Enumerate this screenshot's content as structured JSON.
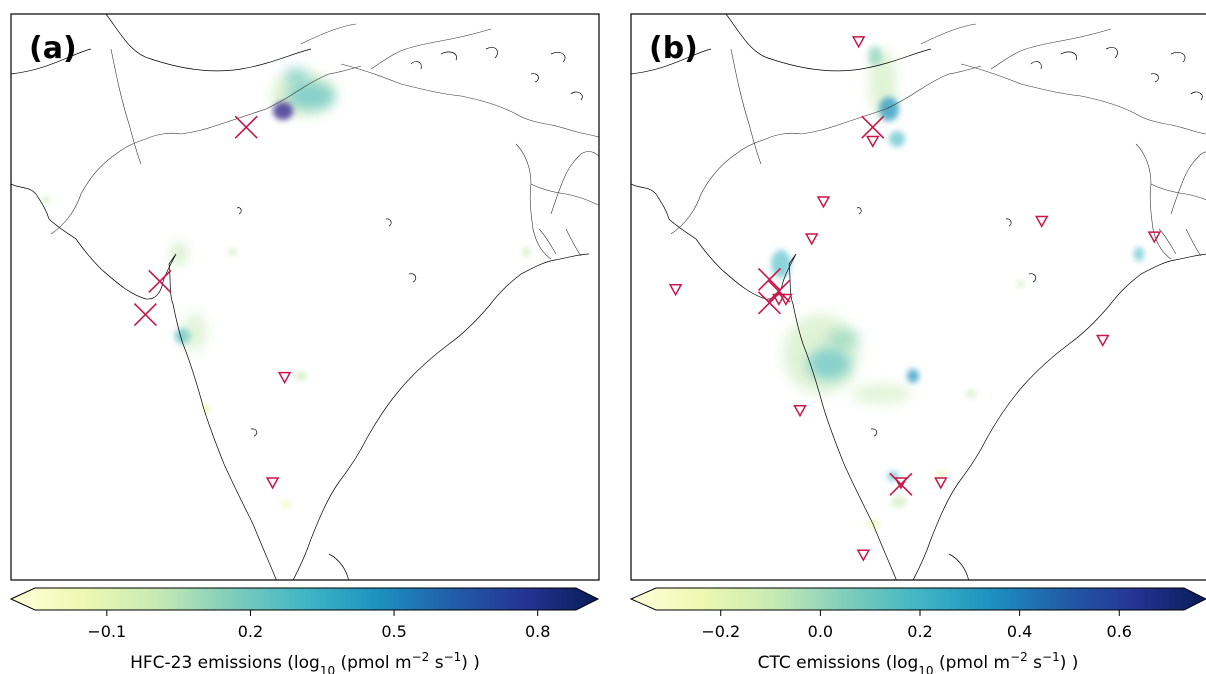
{
  "panels": [
    {
      "label": "(a)",
      "cbar_ticks": [
        "−0.1",
        "0.2",
        "0.5",
        "0.8"
      ],
      "cbar_label_pre": "HFC-23 emissions (log",
      "cbar_label_sub": "10",
      "cbar_label_mid": " (pmol m",
      "cbar_label_sup1": "−2",
      "cbar_label_mid2": " s",
      "cbar_label_sup2": "−1",
      "cbar_label_post": ") )",
      "tick_values": [
        -0.1,
        0.2,
        0.5,
        0.8
      ],
      "range": [
        -0.25,
        0.88
      ],
      "marker_color": "#c8174a",
      "crosses": [
        {
          "lon": 76.8,
          "lat": 30.2
        },
        {
          "lon": 73.2,
          "lat": 22.3
        },
        {
          "lon": 72.6,
          "lat": 20.6
        }
      ],
      "triangles": [
        {
          "lon": 78.4,
          "lat": 17.4
        },
        {
          "lon": 77.9,
          "lat": 12.0
        }
      ]
    },
    {
      "label": "(b)",
      "cbar_ticks": [
        "−0.2",
        "0.0",
        "0.2",
        "0.4",
        "0.6"
      ],
      "cbar_label_pre": "CTC emissions (log",
      "cbar_label_sub": "10",
      "cbar_label_mid": " (pmol m",
      "cbar_label_sup1": "−2",
      "cbar_label_mid2": " s",
      "cbar_label_sup2": "−1",
      "cbar_label_post": ") )",
      "tick_values": [
        -0.2,
        0.0,
        0.2,
        0.4,
        0.6
      ],
      "range": [
        -0.33,
        0.73
      ],
      "marker_color": "#c8174a",
      "crosses": [
        {
          "lon": 77.3,
          "lat": 30.2
        },
        {
          "lon": 72.9,
          "lat": 22.4
        },
        {
          "lon": 73.3,
          "lat": 21.8
        },
        {
          "lon": 72.9,
          "lat": 21.2
        },
        {
          "lon": 78.5,
          "lat": 11.9
        }
      ],
      "triangles": [
        {
          "lon": 76.7,
          "lat": 34.6
        },
        {
          "lon": 77.3,
          "lat": 29.5
        },
        {
          "lon": 75.2,
          "lat": 26.4
        },
        {
          "lon": 84.5,
          "lat": 25.4
        },
        {
          "lon": 74.7,
          "lat": 24.5
        },
        {
          "lon": 89.3,
          "lat": 24.6
        },
        {
          "lon": 68.9,
          "lat": 21.9
        },
        {
          "lon": 73.3,
          "lat": 21.4
        },
        {
          "lon": 73.6,
          "lat": 21.4
        },
        {
          "lon": 87.1,
          "lat": 19.3
        },
        {
          "lon": 74.2,
          "lat": 15.7
        },
        {
          "lon": 78.5,
          "lat": 12.0
        },
        {
          "lon": 80.2,
          "lat": 12.0
        },
        {
          "lon": 76.9,
          "lat": 8.3
        }
      ]
    }
  ]
}
